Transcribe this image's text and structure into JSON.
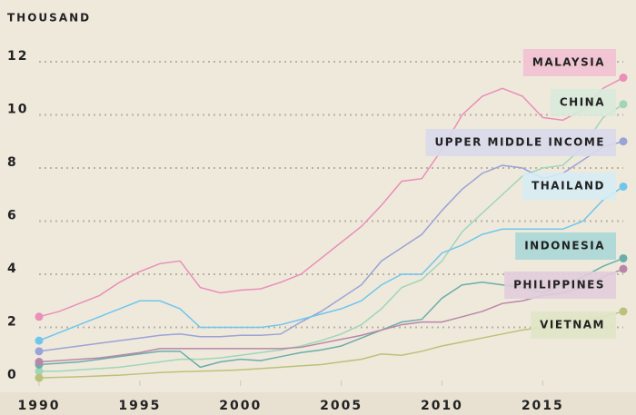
{
  "chart_data": {
    "type": "line",
    "ylabel": "THOUSAND",
    "x": [
      1990,
      1991,
      1992,
      1993,
      1994,
      1995,
      1996,
      1997,
      1998,
      1999,
      2000,
      2001,
      2002,
      2003,
      2004,
      2005,
      2006,
      2007,
      2008,
      2009,
      2010,
      2011,
      2012,
      2013,
      2014,
      2015,
      2016,
      2017,
      2018,
      2019
    ],
    "xlim": [
      1990,
      2019
    ],
    "xticks": [
      1990,
      1995,
      2000,
      2005,
      2010,
      2015
    ],
    "ylim": [
      0,
      12
    ],
    "yticks": [
      0,
      2,
      4,
      6,
      8,
      10,
      12
    ],
    "grid": true,
    "series": [
      {
        "name": "MALAYSIA",
        "color": "#e98fb8",
        "values": [
          2.4,
          2.6,
          2.9,
          3.2,
          3.7,
          4.1,
          4.4,
          4.5,
          3.5,
          3.3,
          3.4,
          3.45,
          3.7,
          4.0,
          4.6,
          5.2,
          5.8,
          6.6,
          7.5,
          7.6,
          8.7,
          10.0,
          10.7,
          11.0,
          10.7,
          9.9,
          9.8,
          10.2,
          11.0,
          11.4
        ]
      },
      {
        "name": "CHINA",
        "color": "#9fd6b8",
        "values": [
          0.35,
          0.35,
          0.4,
          0.45,
          0.5,
          0.6,
          0.7,
          0.8,
          0.8,
          0.85,
          0.95,
          1.05,
          1.15,
          1.3,
          1.5,
          1.75,
          2.1,
          2.7,
          3.5,
          3.8,
          4.5,
          5.6,
          6.3,
          7.0,
          7.7,
          8.0,
          8.1,
          8.8,
          9.9,
          10.4
        ]
      },
      {
        "name": "UPPER MIDDLE INCOME",
        "color": "#9aa3d6",
        "values": [
          1.1,
          1.2,
          1.3,
          1.4,
          1.5,
          1.6,
          1.7,
          1.75,
          1.65,
          1.65,
          1.7,
          1.7,
          1.75,
          2.2,
          2.6,
          3.1,
          3.6,
          4.5,
          5.0,
          5.5,
          6.4,
          7.2,
          7.8,
          8.1,
          8.0,
          7.6,
          7.8,
          8.3,
          8.8,
          9.0
        ]
      },
      {
        "name": "THAILAND",
        "color": "#6ec6ee",
        "values": [
          1.5,
          1.8,
          2.1,
          2.4,
          2.7,
          3.0,
          3.0,
          2.7,
          2.0,
          2.0,
          2.0,
          2.0,
          2.1,
          2.3,
          2.5,
          2.7,
          3.0,
          3.6,
          4.0,
          4.0,
          4.8,
          5.1,
          5.5,
          5.7,
          5.7,
          5.7,
          5.7,
          6.0,
          6.8,
          7.3
        ]
      },
      {
        "name": "INDONESIA",
        "color": "#6aaeaa",
        "values": [
          0.6,
          0.65,
          0.7,
          0.8,
          0.9,
          1.0,
          1.1,
          1.1,
          0.5,
          0.7,
          0.8,
          0.75,
          0.9,
          1.05,
          1.15,
          1.3,
          1.6,
          1.9,
          2.2,
          2.3,
          3.1,
          3.6,
          3.7,
          3.6,
          3.5,
          3.3,
          3.6,
          3.9,
          4.3,
          4.6
        ]
      },
      {
        "name": "PHILIPPINES",
        "color": "#b886a8",
        "values": [
          0.7,
          0.75,
          0.8,
          0.85,
          0.95,
          1.05,
          1.2,
          1.2,
          1.2,
          1.2,
          1.2,
          1.2,
          1.2,
          1.25,
          1.4,
          1.55,
          1.7,
          1.9,
          2.1,
          2.2,
          2.2,
          2.4,
          2.6,
          2.9,
          3.0,
          3.2,
          3.3,
          3.5,
          3.9,
          4.2
        ]
      },
      {
        "name": "VIETNAM",
        "color": "#b9c27a",
        "values": [
          0.1,
          0.12,
          0.14,
          0.17,
          0.2,
          0.25,
          0.3,
          0.33,
          0.35,
          0.37,
          0.4,
          0.45,
          0.5,
          0.55,
          0.6,
          0.7,
          0.8,
          1.0,
          0.95,
          1.1,
          1.3,
          1.45,
          1.6,
          1.75,
          1.9,
          2.0,
          2.1,
          2.25,
          2.4,
          2.6
        ]
      }
    ]
  }
}
